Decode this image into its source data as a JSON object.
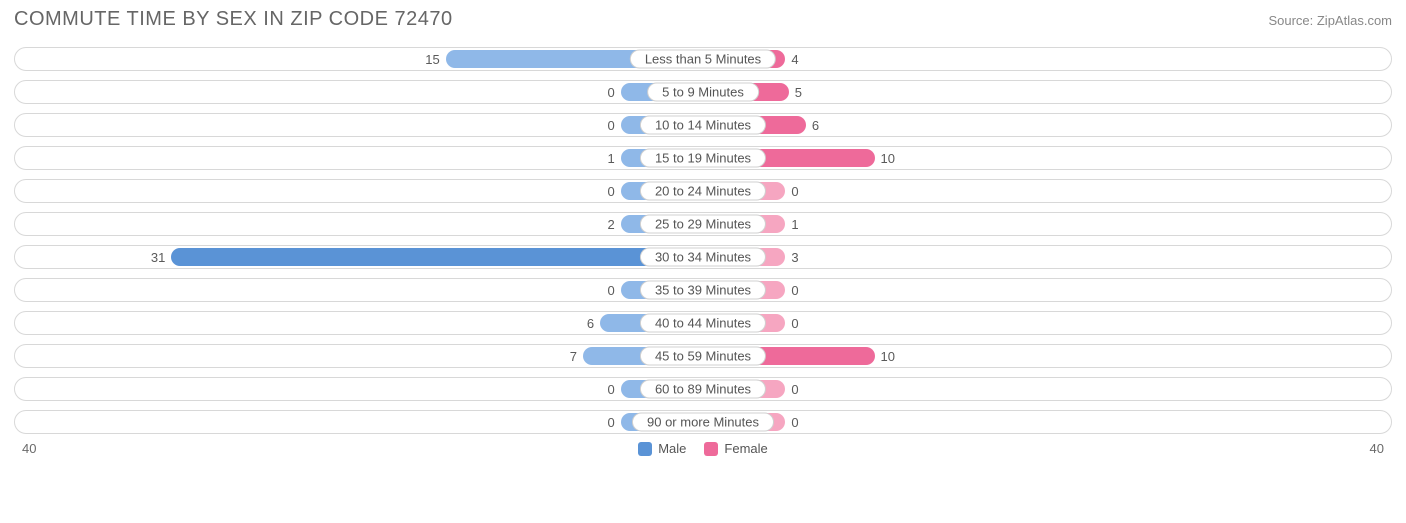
{
  "title": "COMMUTE TIME BY SEX IN ZIP CODE 72470",
  "source": "Source: ZipAtlas.com",
  "axis_max": 40,
  "axis_max_label_left": "40",
  "axis_max_label_right": "40",
  "colors": {
    "male_bar_default": "#8fb8e8",
    "male_bar_highlight": "#5a93d6",
    "female_bar_default": "#f6a6c1",
    "female_bar_highlight": "#ee6a9a",
    "row_border": "#d8d8d8",
    "label_border": "#d0d0d0",
    "text": "#5a5a5a",
    "title_text": "#666666",
    "background": "#ffffff"
  },
  "legend": {
    "male": {
      "label": "Male",
      "color": "#5a93d6"
    },
    "female": {
      "label": "Female",
      "color": "#ee6a9a"
    }
  },
  "categories": [
    {
      "label": "Less than 5 Minutes",
      "male": 15,
      "female": 4,
      "male_hl": false,
      "female_hl": true
    },
    {
      "label": "5 to 9 Minutes",
      "male": 0,
      "female": 5,
      "male_hl": false,
      "female_hl": true
    },
    {
      "label": "10 to 14 Minutes",
      "male": 0,
      "female": 6,
      "male_hl": false,
      "female_hl": true
    },
    {
      "label": "15 to 19 Minutes",
      "male": 1,
      "female": 10,
      "male_hl": false,
      "female_hl": true
    },
    {
      "label": "20 to 24 Minutes",
      "male": 0,
      "female": 0,
      "male_hl": false,
      "female_hl": false
    },
    {
      "label": "25 to 29 Minutes",
      "male": 2,
      "female": 1,
      "male_hl": false,
      "female_hl": false
    },
    {
      "label": "30 to 34 Minutes",
      "male": 31,
      "female": 3,
      "male_hl": true,
      "female_hl": false
    },
    {
      "label": "35 to 39 Minutes",
      "male": 0,
      "female": 0,
      "male_hl": false,
      "female_hl": false
    },
    {
      "label": "40 to 44 Minutes",
      "male": 6,
      "female": 0,
      "male_hl": false,
      "female_hl": false
    },
    {
      "label": "45 to 59 Minutes",
      "male": 7,
      "female": 10,
      "male_hl": false,
      "female_hl": true
    },
    {
      "label": "60 to 89 Minutes",
      "male": 0,
      "female": 0,
      "male_hl": false,
      "female_hl": false
    },
    {
      "label": "90 or more Minutes",
      "male": 0,
      "female": 0,
      "male_hl": false,
      "female_hl": false
    }
  ],
  "min_bar_pct": 12,
  "typography": {
    "title_fontsize": 20,
    "label_fontsize": 13,
    "value_fontsize": 13
  }
}
